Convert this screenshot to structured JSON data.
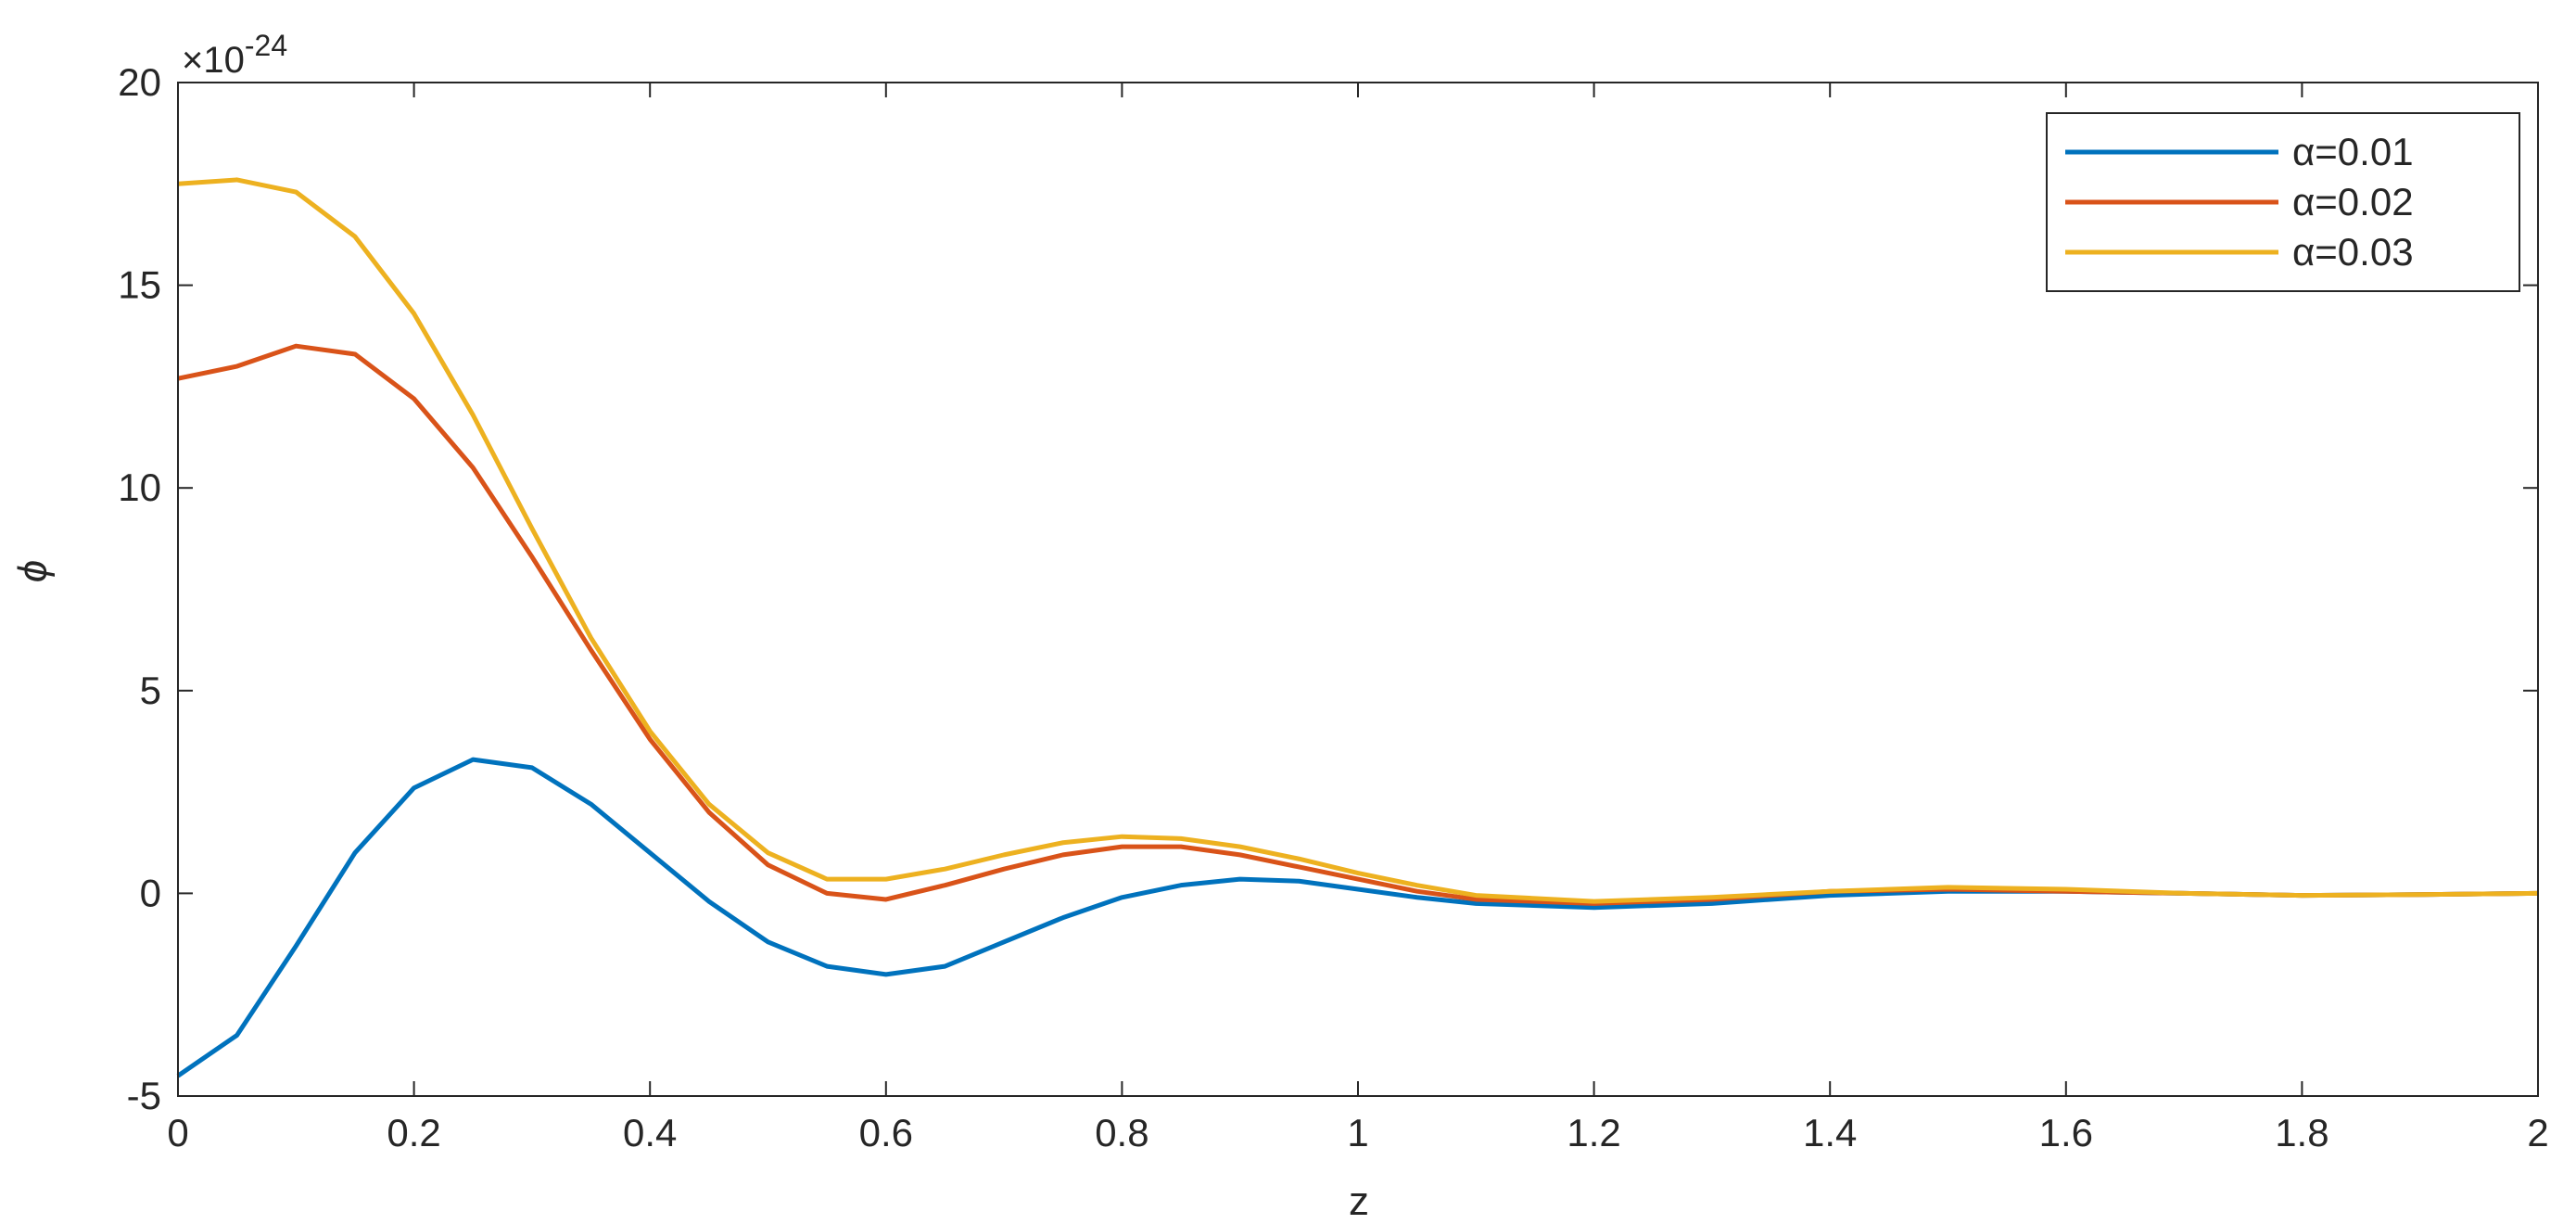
{
  "chart_data": {
    "type": "line",
    "xlabel": "z",
    "ylabel": "ϕ",
    "y_scale_base": "×10",
    "y_scale_power": "-24",
    "x": [
      0,
      0.05,
      0.1,
      0.15,
      0.2,
      0.25,
      0.3,
      0.35,
      0.4,
      0.45,
      0.5,
      0.55,
      0.6,
      0.65,
      0.7,
      0.75,
      0.8,
      0.85,
      0.9,
      0.95,
      1.0,
      1.05,
      1.1,
      1.2,
      1.3,
      1.4,
      1.5,
      1.6,
      1.7,
      1.8,
      1.9,
      2.0
    ],
    "series": [
      {
        "name": "α=0.01",
        "color": "#0072bd",
        "values": [
          -4.5,
          -3.5,
          -1.3,
          1.0,
          2.6,
          3.3,
          3.1,
          2.2,
          1.0,
          -0.2,
          -1.2,
          -1.8,
          -2.0,
          -1.8,
          -1.2,
          -0.6,
          -0.1,
          0.2,
          0.35,
          0.3,
          0.1,
          -0.1,
          -0.25,
          -0.35,
          -0.25,
          -0.05,
          0.05,
          0.05,
          0,
          -0.05,
          -0.03,
          0
        ]
      },
      {
        "name": "α=0.02",
        "color": "#d95319",
        "values": [
          12.7,
          13.0,
          13.5,
          13.3,
          12.2,
          10.5,
          8.3,
          6.0,
          3.8,
          2.0,
          0.7,
          0.0,
          -0.15,
          0.2,
          0.6,
          0.95,
          1.15,
          1.15,
          0.95,
          0.65,
          0.35,
          0.05,
          -0.15,
          -0.25,
          -0.15,
          0.05,
          0.1,
          0.05,
          0,
          -0.05,
          -0.03,
          0
        ]
      },
      {
        "name": "α=0.03",
        "color": "#edb120",
        "values": [
          17.5,
          17.6,
          17.3,
          16.2,
          14.3,
          11.8,
          9.0,
          6.3,
          4.0,
          2.2,
          1.0,
          0.35,
          0.35,
          0.6,
          0.95,
          1.25,
          1.4,
          1.35,
          1.15,
          0.85,
          0.5,
          0.2,
          -0.05,
          -0.2,
          -0.1,
          0.05,
          0.15,
          0.1,
          0,
          -0.05,
          -0.03,
          0
        ]
      }
    ],
    "xlim": [
      0,
      2
    ],
    "xticks": [
      0,
      0.2,
      0.4,
      0.6,
      0.8,
      1,
      1.2,
      1.4,
      1.6,
      1.8,
      2
    ],
    "ylim": [
      -5,
      20
    ],
    "yticks": [
      -5,
      0,
      5,
      10,
      15,
      20
    ],
    "grid": false,
    "legend": "top-right"
  }
}
